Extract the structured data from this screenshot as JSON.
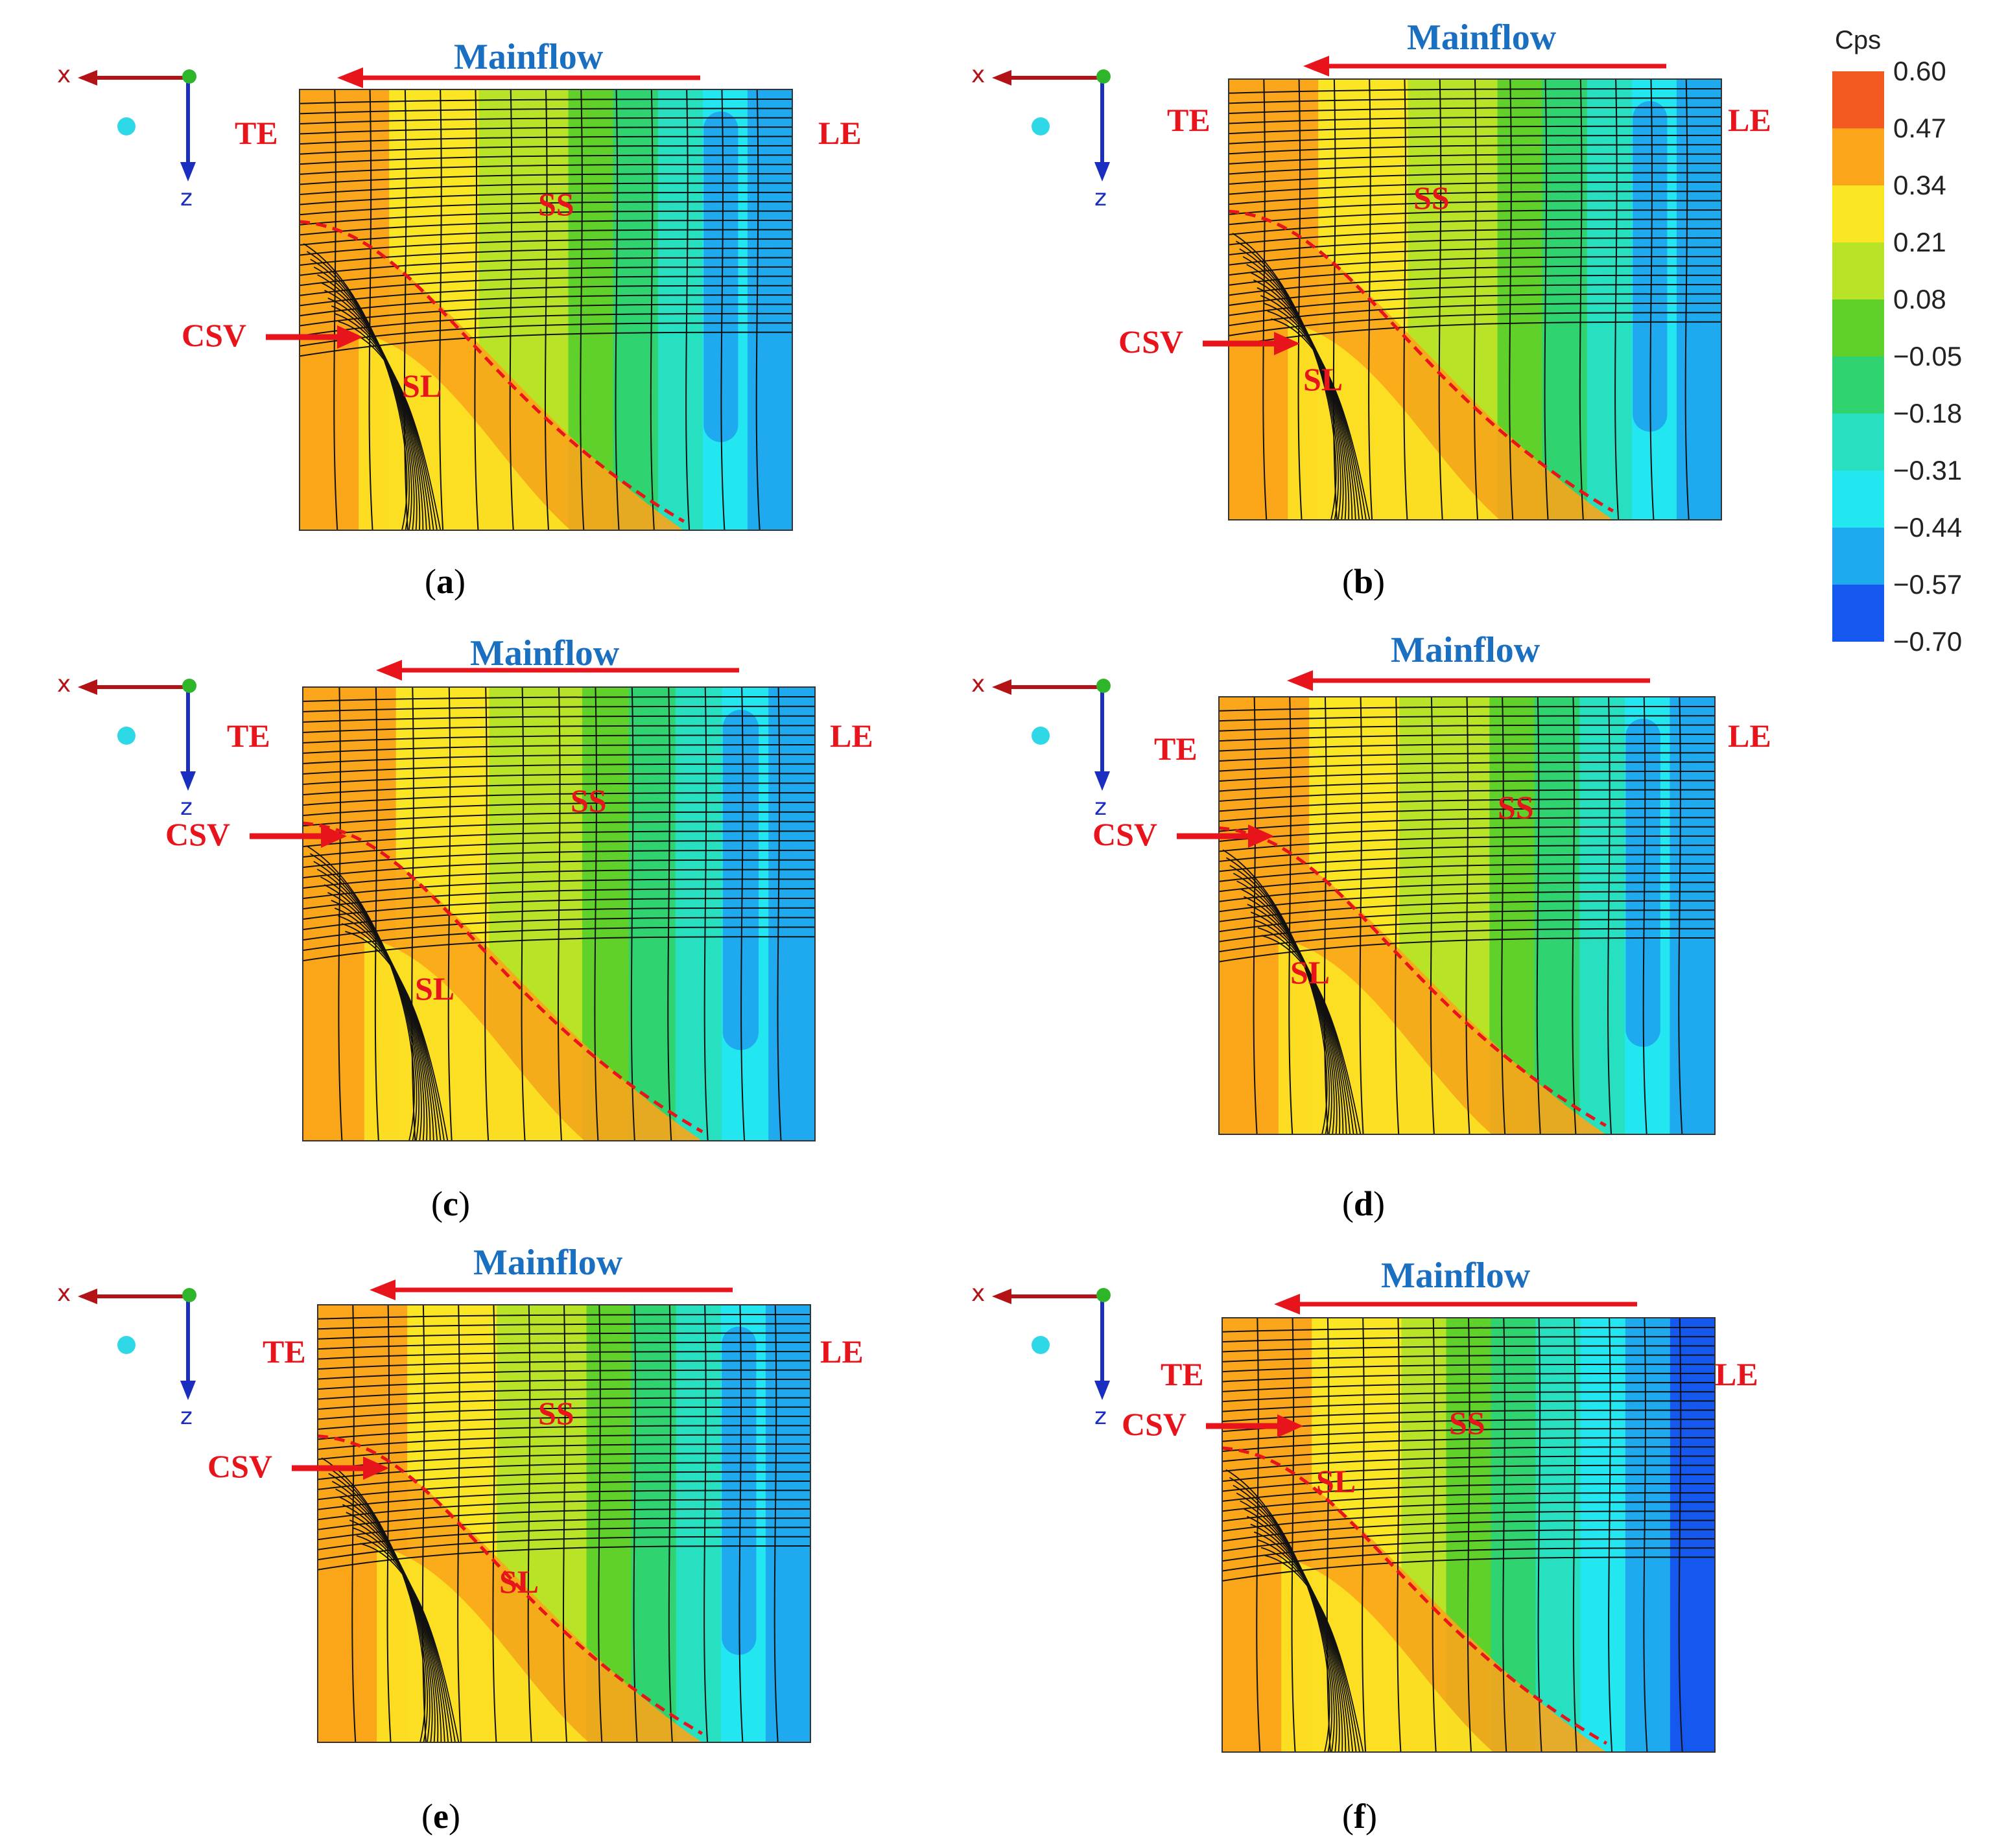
{
  "colorbar": {
    "title": "Cps",
    "ticks": [
      "0.60",
      "0.47",
      "0.34",
      "0.21",
      "0.08",
      "−0.05",
      "−0.18",
      "−0.31",
      "−0.44",
      "−0.57",
      "−0.70"
    ],
    "colors": [
      "#f25a22",
      "#fba51a",
      "#fbe624",
      "#b9e326",
      "#5fd12a",
      "#2fd36f",
      "#26e0c0",
      "#22e6f0",
      "#1fa9ef",
      "#1458f0"
    ]
  },
  "labels": {
    "mainflow": "Mainflow",
    "te": "TE",
    "le": "LE",
    "ss": "SS",
    "sl": "SL",
    "csv": "CSV",
    "axis_x": "x",
    "axis_z": "z"
  },
  "panels": [
    {
      "id": "a",
      "caption_open": "(",
      "caption_letter": "a",
      "caption_close": ")",
      "show_le": true
    },
    {
      "id": "b",
      "caption_open": "(",
      "caption_letter": "b",
      "caption_close": ")",
      "show_le": true
    },
    {
      "id": "c",
      "caption_open": "(",
      "caption_letter": "c",
      "caption_close": ")",
      "show_le": true
    },
    {
      "id": "d",
      "caption_open": "(",
      "caption_letter": "d",
      "caption_close": ")",
      "show_le": true
    },
    {
      "id": "e",
      "caption_open": "(",
      "caption_letter": "e",
      "caption_close": ")",
      "show_le": true
    },
    {
      "id": "f",
      "caption_open": "(",
      "caption_letter": "f",
      "caption_close": ")",
      "show_le": true
    }
  ]
}
